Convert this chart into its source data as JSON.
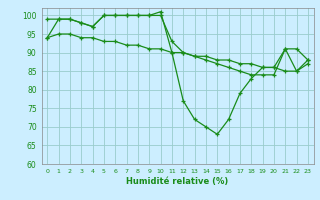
{
  "xlabel": "Humidité relative (%)",
  "bg_color": "#cceeff",
  "line_color": "#1a8c1a",
  "grid_color": "#99cccc",
  "xlim": [
    -0.5,
    23.5
  ],
  "ylim": [
    60,
    102
  ],
  "yticks": [
    60,
    65,
    70,
    75,
    80,
    85,
    90,
    95,
    100
  ],
  "xticks": [
    0,
    1,
    2,
    3,
    4,
    5,
    6,
    7,
    8,
    9,
    10,
    11,
    12,
    13,
    14,
    15,
    16,
    17,
    18,
    19,
    20,
    21,
    22,
    23
  ],
  "line1": [
    94,
    99,
    99,
    98,
    97,
    100,
    100,
    100,
    100,
    100,
    101,
    90,
    77,
    72,
    70,
    68,
    72,
    79,
    83,
    86,
    86,
    91,
    85,
    87
  ],
  "line2": [
    99,
    99,
    99,
    98,
    97,
    100,
    100,
    100,
    100,
    100,
    100,
    93,
    90,
    89,
    88,
    87,
    86,
    85,
    84,
    84,
    84,
    91,
    91,
    88
  ],
  "line3": [
    94,
    95,
    95,
    94,
    94,
    93,
    93,
    92,
    92,
    91,
    91,
    90,
    90,
    89,
    89,
    88,
    88,
    87,
    87,
    86,
    86,
    85,
    85,
    88
  ]
}
